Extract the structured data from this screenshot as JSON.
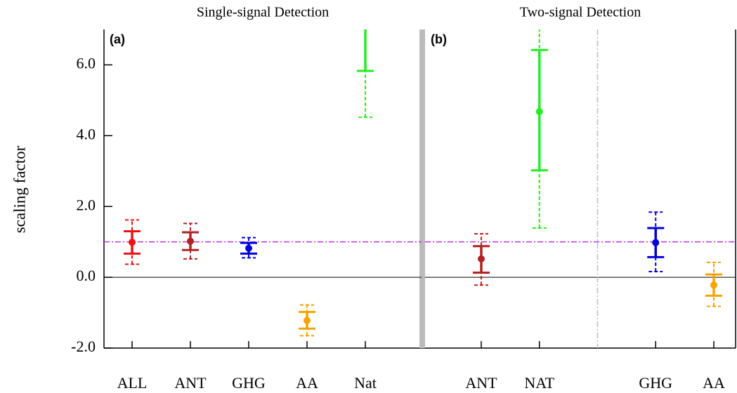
{
  "chart_data": [
    {
      "type": "errorbar",
      "title": "Single-signal Detection",
      "label": "(a)",
      "ylabel": "scaling factor",
      "categories": [
        "ALL",
        "ANT",
        "GHG",
        "AA",
        "Nat"
      ],
      "colors": [
        "#ee1111",
        "#b22222",
        "#0000dd",
        "#f5a300",
        "#22ee22"
      ],
      "values": [
        0.99,
        1.02,
        0.82,
        -1.22,
        null
      ],
      "ci_low": [
        0.67,
        0.77,
        0.67,
        -1.45,
        5.83
      ],
      "ci_high": [
        1.3,
        1.27,
        0.97,
        -0.98,
        null
      ],
      "ci2_low": [
        0.37,
        0.52,
        0.55,
        -1.65,
        4.52
      ],
      "ci2_high": [
        1.62,
        1.52,
        1.12,
        -0.78,
        null
      ],
      "ylim": [
        -2,
        7
      ],
      "yticks": [
        {
          "value": -2,
          "label": "-2.0"
        },
        {
          "value": 0,
          "label": "0.0"
        },
        {
          "value": 2,
          "label": "2.0"
        },
        {
          "value": 4,
          "label": "4.0"
        },
        {
          "value": 6,
          "label": "6.0"
        }
      ],
      "hlines": [
        {
          "value": 0,
          "color": "#000000",
          "dashed": false
        },
        {
          "value": 1,
          "color": "#bb33dd",
          "dashed": true
        }
      ]
    },
    {
      "type": "errorbar",
      "title": "Two-signal Detection",
      "label": "(b)",
      "categories": [
        "ANT",
        "NAT",
        null,
        "GHG",
        "AA"
      ],
      "colors": [
        "#b22222",
        "#22ee22",
        null,
        "#0000dd",
        "#f5a300"
      ],
      "values": [
        0.52,
        4.68,
        null,
        0.98,
        -0.22
      ],
      "ci_low": [
        0.13,
        3.02,
        null,
        0.57,
        -0.52
      ],
      "ci_high": [
        0.88,
        6.42,
        null,
        1.39,
        0.08
      ],
      "ci2_low": [
        -0.22,
        1.39,
        null,
        0.16,
        -0.82
      ],
      "ci2_high": [
        1.23,
        null,
        null,
        1.84,
        0.42
      ],
      "ylim": [
        -2,
        7
      ],
      "hlines": [
        {
          "value": 0,
          "color": "#000000",
          "dashed": false
        },
        {
          "value": 1,
          "color": "#bb33dd",
          "dashed": true
        }
      ]
    }
  ]
}
